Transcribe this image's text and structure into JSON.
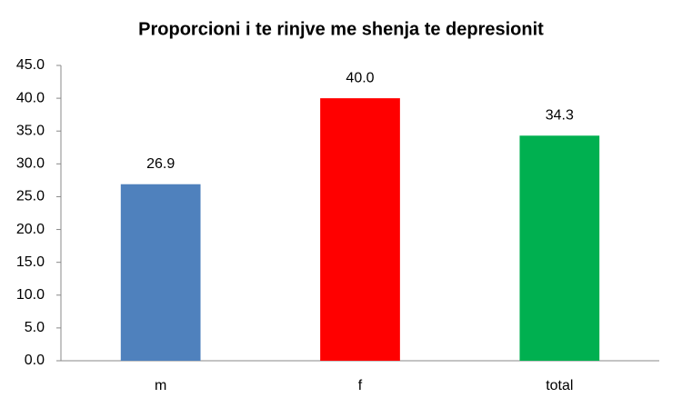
{
  "chart_data": {
    "type": "bar",
    "title": "Proporcioni i te rinjve me shenja te depresionit",
    "categories": [
      "m",
      "f",
      "total"
    ],
    "values": [
      26.9,
      40.0,
      34.3
    ],
    "value_labels": [
      "26.9",
      "40.0",
      "34.3"
    ],
    "colors": [
      "#4f81bd",
      "#ff0000",
      "#00b050"
    ],
    "ylim": [
      0,
      45
    ],
    "yticks": [
      {
        "value": 0,
        "label": "0.0"
      },
      {
        "value": 5,
        "label": "5.0"
      },
      {
        "value": 10,
        "label": "10.0"
      },
      {
        "value": 15,
        "label": "15.0"
      },
      {
        "value": 20,
        "label": "20.0"
      },
      {
        "value": 25,
        "label": "25.0"
      },
      {
        "value": 30,
        "label": "30.0"
      },
      {
        "value": 35,
        "label": "35.0"
      },
      {
        "value": 40,
        "label": "40.0"
      },
      {
        "value": 45,
        "label": "45.0"
      }
    ],
    "grid": false
  }
}
